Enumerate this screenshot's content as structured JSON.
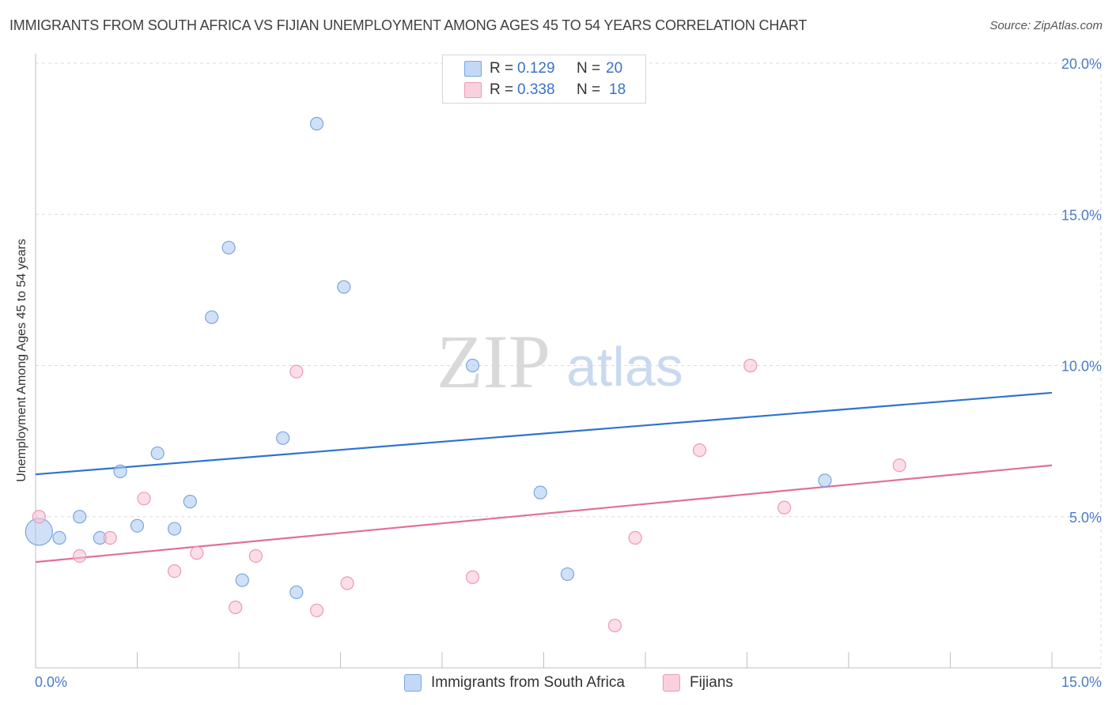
{
  "title": "IMMIGRANTS FROM SOUTH AFRICA VS FIJIAN UNEMPLOYMENT AMONG AGES 45 TO 54 YEARS CORRELATION CHART",
  "source": "Source: ZipAtlas.com",
  "watermark": {
    "zip": "ZIP",
    "atlas": "atlas"
  },
  "legend": {
    "r_label": "R =",
    "n_label": "N =",
    "rows": [
      {
        "r": "0.129",
        "n": "20"
      },
      {
        "r": "0.338",
        "n": "18"
      }
    ]
  },
  "chart_data": {
    "type": "scatter",
    "title": "IMMIGRANTS FROM SOUTH AFRICA VS FIJIAN UNEMPLOYMENT AMONG AGES 45 TO 54 YEARS CORRELATION CHART",
    "xlabel": "",
    "ylabel": "Unemployment Among Ages 45 to 54 years",
    "xlim": [
      0,
      15
    ],
    "ylim": [
      0,
      20
    ],
    "x_tick_labels": [
      "0.0%",
      "15.0%"
    ],
    "y_tick_labels": [
      "20.0%",
      "15.0%",
      "10.0%",
      "5.0%"
    ],
    "y_ticks": [
      20,
      15,
      10,
      5
    ],
    "grid": true,
    "series": [
      {
        "name": "Immigrants from South Africa",
        "color": "#a9c8f0",
        "stroke": "#7aa6e0",
        "line_color": "#2f73d0",
        "trend": {
          "y_at_xmin": 6.4,
          "y_at_xmax": 9.1
        },
        "points": [
          {
            "x": 0.05,
            "y": 4.5,
            "big": true
          },
          {
            "x": 0.35,
            "y": 4.3
          },
          {
            "x": 0.65,
            "y": 5.0
          },
          {
            "x": 0.95,
            "y": 4.3
          },
          {
            "x": 1.25,
            "y": 6.5
          },
          {
            "x": 1.5,
            "y": 4.7
          },
          {
            "x": 1.8,
            "y": 7.1
          },
          {
            "x": 2.05,
            "y": 4.6
          },
          {
            "x": 2.28,
            "y": 5.5
          },
          {
            "x": 2.6,
            "y": 11.6
          },
          {
            "x": 2.85,
            "y": 13.9
          },
          {
            "x": 3.05,
            "y": 2.9
          },
          {
            "x": 3.65,
            "y": 7.6
          },
          {
            "x": 3.85,
            "y": 2.5
          },
          {
            "x": 4.15,
            "y": 18.0
          },
          {
            "x": 4.55,
            "y": 12.6
          },
          {
            "x": 6.45,
            "y": 10.0
          },
          {
            "x": 7.45,
            "y": 5.8
          },
          {
            "x": 7.85,
            "y": 3.1
          },
          {
            "x": 11.65,
            "y": 6.2
          }
        ]
      },
      {
        "name": "Fijians",
        "color": "#f7c3d4",
        "stroke": "#ec9ab5",
        "line_color": "#e0709a",
        "trend": {
          "y_at_xmin": 3.5,
          "y_at_xmax": 6.7
        },
        "points": [
          {
            "x": 0.05,
            "y": 5.0
          },
          {
            "x": 0.65,
            "y": 3.7
          },
          {
            "x": 1.1,
            "y": 4.3
          },
          {
            "x": 1.6,
            "y": 5.6
          },
          {
            "x": 2.05,
            "y": 3.2
          },
          {
            "x": 2.38,
            "y": 3.8
          },
          {
            "x": 2.95,
            "y": 2.0
          },
          {
            "x": 3.25,
            "y": 3.7
          },
          {
            "x": 3.85,
            "y": 9.8
          },
          {
            "x": 4.15,
            "y": 1.9
          },
          {
            "x": 4.6,
            "y": 2.8
          },
          {
            "x": 6.45,
            "y": 3.0
          },
          {
            "x": 8.55,
            "y": 1.4
          },
          {
            "x": 8.85,
            "y": 4.3
          },
          {
            "x": 9.8,
            "y": 7.2
          },
          {
            "x": 10.55,
            "y": 10.0
          },
          {
            "x": 11.05,
            "y": 5.3
          },
          {
            "x": 12.75,
            "y": 6.7
          }
        ]
      }
    ]
  }
}
